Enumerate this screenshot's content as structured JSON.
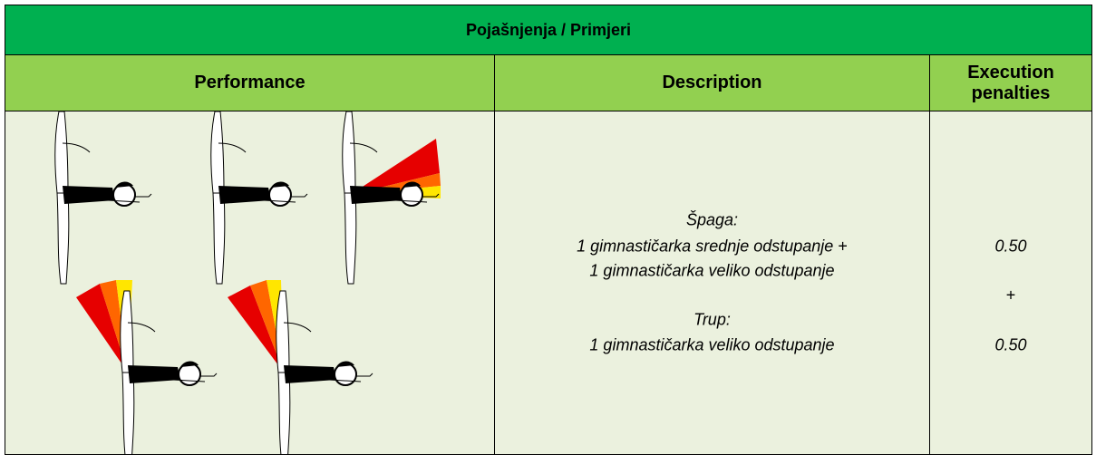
{
  "header": {
    "title": "Pojašnjenja / Primjeri"
  },
  "table": {
    "columns": [
      "Performance",
      "Description",
      "Execution penalties"
    ],
    "rows": [
      {
        "description": {
          "title1": "Špaga:",
          "line1": "1 gimnastičarka srednje odstupanje",
          "plus": "+",
          "line2": "1 gimnastičarka veliko odstupanje",
          "title2": "Trup:",
          "line3": "1 gimnastičarka veliko odstupanje"
        },
        "penalties": [
          "0.50",
          "+",
          "0.50"
        ]
      }
    ]
  }
}
